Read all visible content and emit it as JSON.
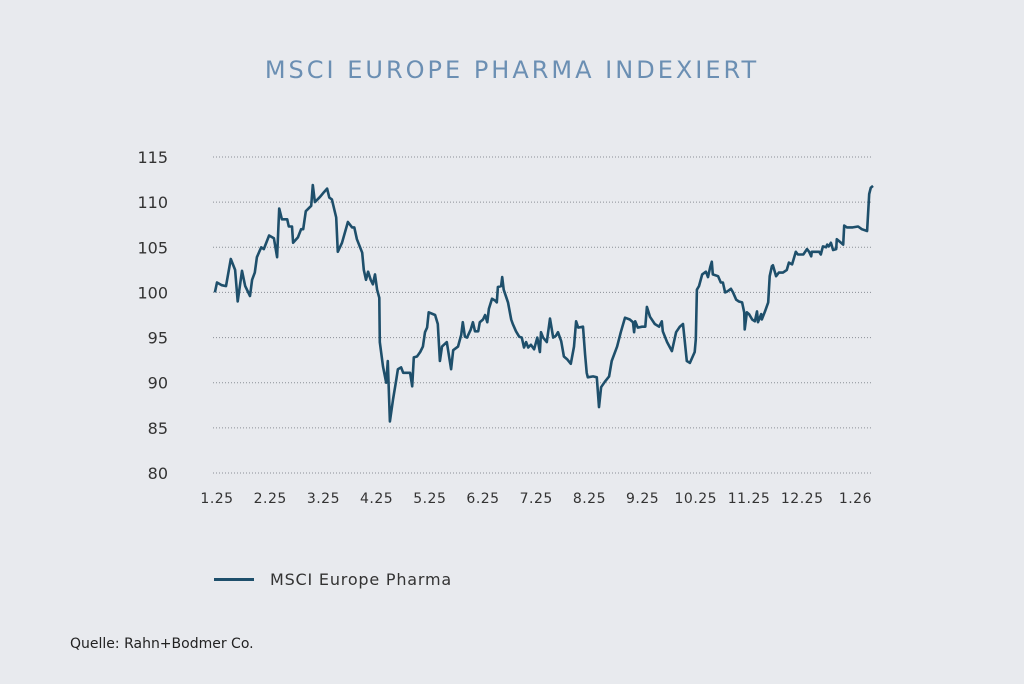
{
  "title": "MSCI EUROPE PHARMA INDEXIERT",
  "legend": {
    "label": "MSCI Europe Pharma"
  },
  "source": "Quelle: Rahn+Bodmer Co.",
  "colors": {
    "line": "#1e4f6b",
    "title": "#6b8fb3",
    "background": "#e8eaee",
    "grid": "#8a8f96"
  },
  "chart_data": {
    "type": "line",
    "title": "MSCI EUROPE PHARMA INDEXIERT",
    "xlabel": "",
    "ylabel": "",
    "ylim": [
      80,
      115
    ],
    "yticks": [
      115,
      110,
      105,
      100,
      95,
      90,
      85,
      80
    ],
    "xticks": [
      "1.25",
      "2.25",
      "3.25",
      "4.25",
      "5.25",
      "6.25",
      "7.25",
      "8.25",
      "9.25",
      "10.25",
      "11.25",
      "12.25",
      "1.26"
    ],
    "x_unit": "months since Jan 2025",
    "grid": "horizontal dotted",
    "legend_position": "bottom-left",
    "series": [
      {
        "name": "MSCI Europe Pharma",
        "points": [
          [
            -0.04,
            100.0
          ],
          [
            0.0,
            101.1
          ],
          [
            0.09,
            100.8
          ],
          [
            0.17,
            100.7
          ],
          [
            0.26,
            103.7
          ],
          [
            0.34,
            102.5
          ],
          [
            0.39,
            99.0
          ],
          [
            0.47,
            102.4
          ],
          [
            0.53,
            100.7
          ],
          [
            0.62,
            99.6
          ],
          [
            0.66,
            101.4
          ],
          [
            0.71,
            102.2
          ],
          [
            0.75,
            103.9
          ],
          [
            0.83,
            105.0
          ],
          [
            0.88,
            104.8
          ],
          [
            0.98,
            106.3
          ],
          [
            1.07,
            106.0
          ],
          [
            1.13,
            103.9
          ],
          [
            1.17,
            109.3
          ],
          [
            1.22,
            108.1
          ],
          [
            1.32,
            108.1
          ],
          [
            1.35,
            107.3
          ],
          [
            1.41,
            107.3
          ],
          [
            1.43,
            105.5
          ],
          [
            1.52,
            106.1
          ],
          [
            1.58,
            107.0
          ],
          [
            1.62,
            107.0
          ],
          [
            1.67,
            109.0
          ],
          [
            1.77,
            109.6
          ],
          [
            1.8,
            111.9
          ],
          [
            1.84,
            110.0
          ],
          [
            1.94,
            110.6
          ],
          [
            2.01,
            111.1
          ],
          [
            2.07,
            111.5
          ],
          [
            2.11,
            110.5
          ],
          [
            2.16,
            110.3
          ],
          [
            2.24,
            108.3
          ],
          [
            2.27,
            104.5
          ],
          [
            2.35,
            105.5
          ],
          [
            2.46,
            107.8
          ],
          [
            2.54,
            107.2
          ],
          [
            2.58,
            107.2
          ],
          [
            2.63,
            105.9
          ],
          [
            2.73,
            104.4
          ],
          [
            2.76,
            102.5
          ],
          [
            2.8,
            101.4
          ],
          [
            2.84,
            102.3
          ],
          [
            2.89,
            101.4
          ],
          [
            2.93,
            100.9
          ],
          [
            2.97,
            102.0
          ],
          [
            3.01,
            100.3
          ],
          [
            3.05,
            99.4
          ],
          [
            3.06,
            94.5
          ],
          [
            3.12,
            91.8
          ],
          [
            3.18,
            90.0
          ],
          [
            3.21,
            92.4
          ],
          [
            3.25,
            85.7
          ],
          [
            3.31,
            88.2
          ],
          [
            3.36,
            90.0
          ],
          [
            3.4,
            91.5
          ],
          [
            3.46,
            91.7
          ],
          [
            3.5,
            91.1
          ],
          [
            3.57,
            91.1
          ],
          [
            3.63,
            91.1
          ],
          [
            3.67,
            89.6
          ],
          [
            3.7,
            92.8
          ],
          [
            3.76,
            92.9
          ],
          [
            3.82,
            93.4
          ],
          [
            3.87,
            94.0
          ],
          [
            3.91,
            95.6
          ],
          [
            3.95,
            96.1
          ],
          [
            3.98,
            97.8
          ],
          [
            4.1,
            97.5
          ],
          [
            4.15,
            96.5
          ],
          [
            4.19,
            92.4
          ],
          [
            4.23,
            94.0
          ],
          [
            4.32,
            94.5
          ],
          [
            4.4,
            91.5
          ],
          [
            4.44,
            93.6
          ],
          [
            4.53,
            94.0
          ],
          [
            4.59,
            95.3
          ],
          [
            4.62,
            96.7
          ],
          [
            4.66,
            95.1
          ],
          [
            4.7,
            95.0
          ],
          [
            4.77,
            95.9
          ],
          [
            4.81,
            96.7
          ],
          [
            4.85,
            95.7
          ],
          [
            4.91,
            95.7
          ],
          [
            4.94,
            96.7
          ],
          [
            5.0,
            97.0
          ],
          [
            5.04,
            97.5
          ],
          [
            5.08,
            96.7
          ],
          [
            5.11,
            98.2
          ],
          [
            5.17,
            99.3
          ],
          [
            5.23,
            99.1
          ],
          [
            5.26,
            98.9
          ],
          [
            5.28,
            100.6
          ],
          [
            5.34,
            100.7
          ],
          [
            5.36,
            101.7
          ],
          [
            5.39,
            100.3
          ],
          [
            5.47,
            98.9
          ],
          [
            5.53,
            97.0
          ],
          [
            5.56,
            96.5
          ],
          [
            5.62,
            95.7
          ],
          [
            5.68,
            95.1
          ],
          [
            5.73,
            95.0
          ],
          [
            5.77,
            93.9
          ],
          [
            5.81,
            94.5
          ],
          [
            5.85,
            93.9
          ],
          [
            5.9,
            94.2
          ],
          [
            5.96,
            93.7
          ],
          [
            6.02,
            95.0
          ],
          [
            6.07,
            93.4
          ],
          [
            6.09,
            95.6
          ],
          [
            6.13,
            95.0
          ],
          [
            6.2,
            94.5
          ],
          [
            6.26,
            97.1
          ],
          [
            6.32,
            95.0
          ],
          [
            6.37,
            95.2
          ],
          [
            6.41,
            95.6
          ],
          [
            6.47,
            94.6
          ],
          [
            6.52,
            92.9
          ],
          [
            6.58,
            92.6
          ],
          [
            6.65,
            92.1
          ],
          [
            6.71,
            94.0
          ],
          [
            6.75,
            96.8
          ],
          [
            6.79,
            96.1
          ],
          [
            6.88,
            96.2
          ],
          [
            6.92,
            93.1
          ],
          [
            6.95,
            91.1
          ],
          [
            6.97,
            90.6
          ],
          [
            7.07,
            90.7
          ],
          [
            7.14,
            90.6
          ],
          [
            7.18,
            87.3
          ],
          [
            7.22,
            89.5
          ],
          [
            7.29,
            90.1
          ],
          [
            7.37,
            90.7
          ],
          [
            7.42,
            92.4
          ],
          [
            7.52,
            94.0
          ],
          [
            7.59,
            95.6
          ],
          [
            7.67,
            97.2
          ],
          [
            7.76,
            97.0
          ],
          [
            7.82,
            96.7
          ],
          [
            7.84,
            95.6
          ],
          [
            7.86,
            96.8
          ],
          [
            7.91,
            96.1
          ],
          [
            7.99,
            96.2
          ],
          [
            8.05,
            96.2
          ],
          [
            8.08,
            98.4
          ],
          [
            8.14,
            97.3
          ],
          [
            8.23,
            96.5
          ],
          [
            8.31,
            96.2
          ],
          [
            8.36,
            96.8
          ],
          [
            8.38,
            95.7
          ],
          [
            8.46,
            94.5
          ],
          [
            8.55,
            93.5
          ],
          [
            8.63,
            95.6
          ],
          [
            8.7,
            96.2
          ],
          [
            8.76,
            96.5
          ],
          [
            8.83,
            92.4
          ],
          [
            8.89,
            92.2
          ],
          [
            8.98,
            93.4
          ],
          [
            9.0,
            94.8
          ],
          [
            9.02,
            100.3
          ],
          [
            9.06,
            100.7
          ],
          [
            9.12,
            102.0
          ],
          [
            9.19,
            102.3
          ],
          [
            9.23,
            101.7
          ],
          [
            9.27,
            102.8
          ],
          [
            9.3,
            103.4
          ],
          [
            9.32,
            102.0
          ],
          [
            9.42,
            101.8
          ],
          [
            9.47,
            101.1
          ],
          [
            9.51,
            101.1
          ],
          [
            9.55,
            100.0
          ],
          [
            9.59,
            100.1
          ],
          [
            9.66,
            100.4
          ],
          [
            9.7,
            100.0
          ],
          [
            9.76,
            99.2
          ],
          [
            9.81,
            99.0
          ],
          [
            9.87,
            98.9
          ],
          [
            9.91,
            97.8
          ],
          [
            9.92,
            95.9
          ],
          [
            9.96,
            97.8
          ],
          [
            10.0,
            97.6
          ],
          [
            10.06,
            97.0
          ],
          [
            10.11,
            96.8
          ],
          [
            10.15,
            97.9
          ],
          [
            10.17,
            96.7
          ],
          [
            10.23,
            97.6
          ],
          [
            10.24,
            97.0
          ],
          [
            10.3,
            97.9
          ],
          [
            10.36,
            98.9
          ],
          [
            10.39,
            101.8
          ],
          [
            10.43,
            102.9
          ],
          [
            10.45,
            103.0
          ],
          [
            10.51,
            101.8
          ],
          [
            10.56,
            102.2
          ],
          [
            10.64,
            102.2
          ],
          [
            10.71,
            102.5
          ],
          [
            10.75,
            103.3
          ],
          [
            10.81,
            103.1
          ],
          [
            10.88,
            104.5
          ],
          [
            10.92,
            104.2
          ],
          [
            11.02,
            104.2
          ],
          [
            11.09,
            104.8
          ],
          [
            11.13,
            104.5
          ],
          [
            11.17,
            104.0
          ],
          [
            11.18,
            104.5
          ],
          [
            11.28,
            104.5
          ],
          [
            11.32,
            104.5
          ],
          [
            11.35,
            104.2
          ],
          [
            11.39,
            105.1
          ],
          [
            11.45,
            105.0
          ],
          [
            11.47,
            105.3
          ],
          [
            11.5,
            105.1
          ],
          [
            11.54,
            105.5
          ],
          [
            11.58,
            104.7
          ],
          [
            11.64,
            104.8
          ],
          [
            11.65,
            105.9
          ],
          [
            11.71,
            105.6
          ],
          [
            11.77,
            105.3
          ],
          [
            11.79,
            107.4
          ],
          [
            11.84,
            107.2
          ],
          [
            11.95,
            107.2
          ],
          [
            12.05,
            107.3
          ],
          [
            12.12,
            107.0
          ],
          [
            12.22,
            106.8
          ],
          [
            12.26,
            110.9
          ],
          [
            12.29,
            111.6
          ],
          [
            12.33,
            111.8
          ]
        ]
      }
    ]
  }
}
